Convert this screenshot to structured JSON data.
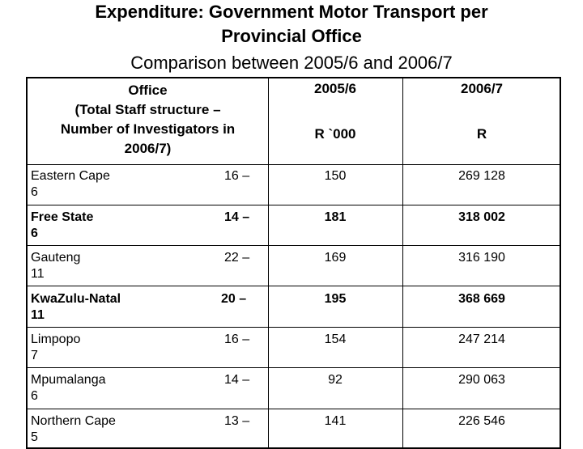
{
  "title": [
    "Expenditure: Government Motor Transport per",
    "Provincial Office"
  ],
  "subtitle": "Comparison between 2005/6 and 2006/7",
  "table": {
    "header": {
      "office_l1": "Office",
      "office_l2": "(Total Staff structure –",
      "office_l3": "Number of Investigators in",
      "office_l4": "2006/7)",
      "col1": "2005/6",
      "col1_unit": "R `000",
      "col2": "2006/7",
      "col2_unit": "R"
    },
    "rows": [
      {
        "office": "Eastern Cape",
        "investigators": "6",
        "staff": "16 –",
        "v2005": "150",
        "v2006": "269 128",
        "bold": false
      },
      {
        "office": "Free State",
        "investigators": "6",
        "staff": "14 –",
        "v2005": "181",
        "v2006": "318 002",
        "bold": true
      },
      {
        "office": "Gauteng",
        "investigators": "11",
        "staff": "22 –",
        "v2005": "169",
        "v2006": "316 190",
        "bold": false
      },
      {
        "office": "KwaZulu-Natal",
        "investigators": "11",
        "staff": "20 –",
        "v2005": "195",
        "v2006": "368 669",
        "bold": true
      },
      {
        "office": "Limpopo",
        "investigators": "7",
        "staff": "16 –",
        "v2005": "154",
        "v2006": "247 214",
        "bold": false
      },
      {
        "office": "Mpumalanga",
        "investigators": "6",
        "staff": "14 –",
        "v2005": "92",
        "v2006": "290 063",
        "bold": false
      },
      {
        "office": "Northern Cape",
        "investigators": "5",
        "staff": "13 –",
        "v2005": "141",
        "v2006": "226 546",
        "bold": false
      }
    ]
  }
}
